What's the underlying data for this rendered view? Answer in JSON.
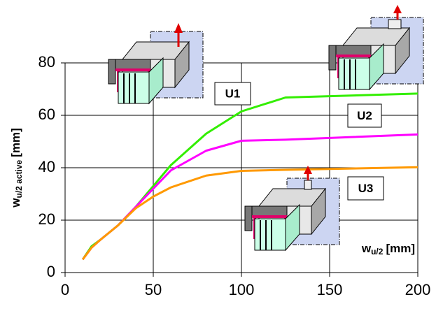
{
  "chart_data": {
    "type": "line",
    "x": [
      10,
      15,
      20,
      30,
      40,
      50,
      60,
      80,
      100,
      125,
      200
    ],
    "series": [
      {
        "name": "U1",
        "color": "#33ee00",
        "label_color": "#33aa55",
        "values": [
          5,
          10,
          12.5,
          18,
          25,
          33,
          41,
          53,
          61.5,
          66.8,
          68.3
        ]
      },
      {
        "name": "U2",
        "color": "#ff00ff",
        "label_color": "#ff00ff",
        "values": [
          5,
          9.5,
          12.5,
          18,
          25,
          32,
          39,
          46.5,
          50.3,
          50.7,
          52.7
        ]
      },
      {
        "name": "U3",
        "color": "#ff9900",
        "label_color": "#ff9900",
        "values": [
          5,
          9.5,
          12.5,
          18,
          24.5,
          29,
          32.5,
          37,
          38.8,
          39.2,
          40.2
        ]
      }
    ],
    "xlim": [
      0,
      200
    ],
    "xticks": [
      0,
      50,
      100,
      150,
      200
    ],
    "ylim": [
      0,
      80
    ],
    "yticks": [
      0,
      20,
      40,
      60,
      80
    ],
    "grid": true,
    "y_label": {
      "main": "w",
      "sub": "u/2 active",
      "unit": "[mm]"
    },
    "x_label": {
      "main": "w",
      "sub": "u/2",
      "unit": "[mm]"
    }
  }
}
